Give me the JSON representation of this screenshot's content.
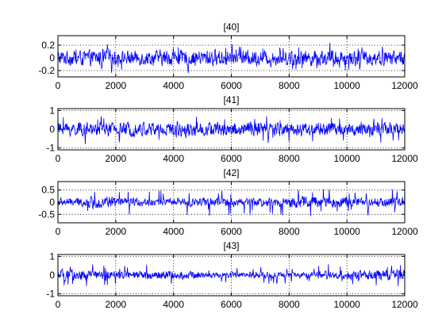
{
  "figure": {
    "background": "#ffffff",
    "series_color": "#0000ff",
    "grid": "dotted",
    "axis_color": "#000000"
  },
  "chart_data": [
    {
      "type": "line",
      "title": "[40]",
      "xlabel": "",
      "ylabel": "",
      "xlim": [
        0,
        12000
      ],
      "ylim": [
        -0.3,
        0.35
      ],
      "xticks": [
        0,
        2000,
        4000,
        6000,
        8000,
        10000,
        12000
      ],
      "yticks": [
        -0.2,
        0,
        0.2
      ],
      "ytick_labels": [
        "-0.2",
        "0",
        "0.2"
      ],
      "series": [
        {
          "n_samples": 12000,
          "amplitude_typical": 0.15,
          "amplitude_peak": 0.3,
          "envelope": [
            0.95,
            1.0,
            0.9,
            1.0,
            0.95,
            1.05,
            0.95,
            0.9,
            1.0,
            1.05,
            1.0,
            1.0
          ]
        }
      ]
    },
    {
      "type": "line",
      "title": "[41]",
      "xlabel": "",
      "ylabel": "",
      "xlim": [
        0,
        12000
      ],
      "ylim": [
        -1.1,
        1.1
      ],
      "xticks": [
        0,
        2000,
        4000,
        6000,
        8000,
        10000,
        12000
      ],
      "yticks": [
        -1,
        0,
        1
      ],
      "ytick_labels": [
        "-1",
        "0",
        "1"
      ],
      "series": [
        {
          "n_samples": 12000,
          "amplitude_typical": 0.45,
          "amplitude_peak": 0.95,
          "envelope": [
            1.0,
            0.95,
            1.0,
            1.05,
            1.1,
            1.0,
            1.1,
            1.0,
            1.0,
            0.95,
            0.9,
            0.95
          ]
        }
      ]
    },
    {
      "type": "line",
      "title": "[42]",
      "xlabel": "",
      "ylabel": "",
      "xlim": [
        0,
        12000
      ],
      "ylim": [
        -0.85,
        0.85
      ],
      "xticks": [
        0,
        2000,
        4000,
        6000,
        8000,
        10000,
        12000
      ],
      "yticks": [
        -0.5,
        0,
        0.5
      ],
      "ytick_labels": [
        "-0.5",
        "0",
        "0.5"
      ],
      "series": [
        {
          "n_samples": 12000,
          "amplitude_typical": 0.2,
          "amplitude_peak": 0.75,
          "envelope": [
            1.0,
            1.5,
            1.0,
            0.9,
            1.0,
            1.1,
            1.0,
            1.1,
            1.5,
            1.4,
            1.1,
            1.2
          ]
        }
      ]
    },
    {
      "type": "line",
      "title": "[43]",
      "xlabel": "",
      "ylabel": "",
      "xlim": [
        0,
        12000
      ],
      "ylim": [
        -1.1,
        1.1
      ],
      "xticks": [
        0,
        2000,
        4000,
        6000,
        8000,
        10000,
        12000
      ],
      "yticks": [
        -1,
        0,
        1
      ],
      "ytick_labels": [
        "-1",
        "0",
        "1"
      ],
      "series": [
        {
          "n_samples": 12000,
          "amplitude_typical": 0.25,
          "amplitude_peak": 0.8,
          "envelope": [
            1.4,
            1.1,
            1.0,
            1.1,
            1.0,
            0.7,
            0.8,
            0.8,
            0.7,
            1.0,
            1.2,
            1.4
          ]
        }
      ]
    }
  ]
}
